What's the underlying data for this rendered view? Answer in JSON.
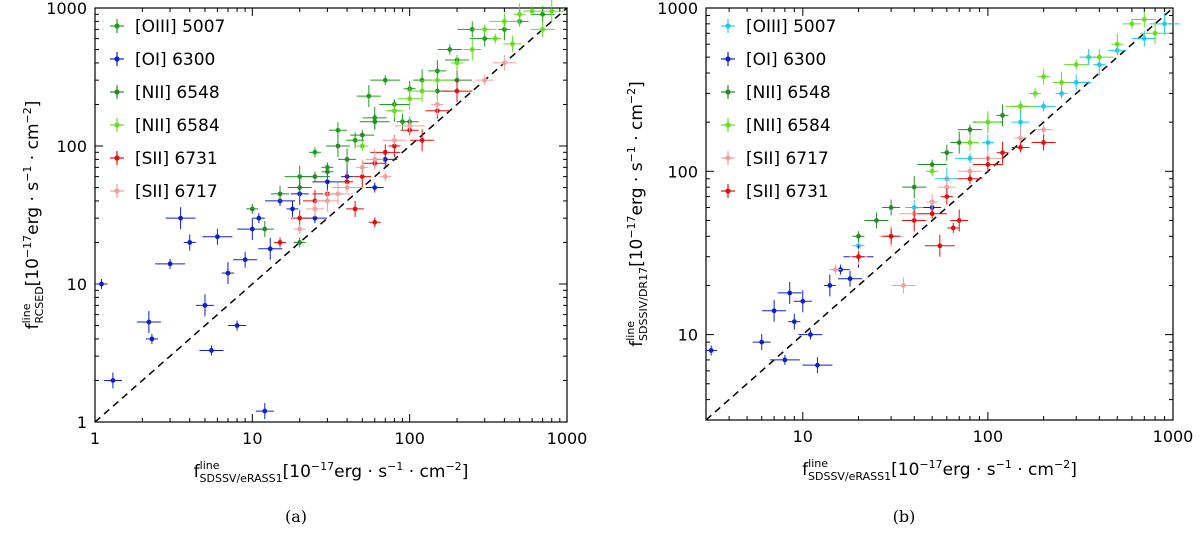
{
  "chart_data": [
    {
      "type": "scatter",
      "panel": "(a)",
      "xscale": "log",
      "yscale": "log",
      "xlim": [
        1,
        1000
      ],
      "ylim": [
        1,
        1000
      ],
      "x_ticks": [
        "1",
        "10",
        "100",
        "1000"
      ],
      "y_ticks": [
        "1",
        "10",
        "100",
        "1000"
      ],
      "xlabel": {
        "main": "f",
        "sup": "line",
        "sub": "SDSSV/eRASS1",
        "units": "[10",
        "units_exp": "−17",
        "units_rest": "erg · s",
        "units_exp2": "−1",
        "units_end": " · cm",
        "units_exp3": "−2",
        "close": "]"
      },
      "ylabel": {
        "main": "f",
        "sup": "line",
        "sub": "RCSED",
        "units": "[10",
        "units_exp": "−17",
        "units_rest": "erg · s",
        "units_exp2": "−1",
        "units_end": " · cm",
        "units_exp3": "−2",
        "close": "]"
      },
      "reference_line": "y = x",
      "legend_position": "top-left",
      "series": [
        {
          "name": "[OIII] 5007",
          "color": "#1f9e1f",
          "points": [
            [
              30,
              70
            ],
            [
              45,
              110
            ],
            [
              60,
              160
            ],
            [
              80,
              200
            ],
            [
              100,
              260
            ],
            [
              150,
              350
            ],
            [
              200,
              420
            ],
            [
              300,
              600
            ],
            [
              400,
              700
            ],
            [
              500,
              800
            ],
            [
              700,
              900
            ],
            [
              20,
              60
            ],
            [
              25,
              90
            ],
            [
              35,
              130
            ],
            [
              55,
              230
            ],
            [
              70,
              300
            ],
            [
              90,
              150
            ],
            [
              120,
              300
            ],
            [
              180,
              500
            ],
            [
              250,
              700
            ]
          ]
        },
        {
          "name": "[OI] 6300",
          "color": "#1020c8",
          "points": [
            [
              1.1,
              10
            ],
            [
              1.3,
              2
            ],
            [
              2.2,
              5.3
            ],
            [
              3,
              14
            ],
            [
              4,
              20
            ],
            [
              5,
              7
            ],
            [
              5.5,
              3.3
            ],
            [
              6,
              22
            ],
            [
              7,
              12
            ],
            [
              8,
              5
            ],
            [
              9,
              15
            ],
            [
              10,
              25
            ],
            [
              11,
              30
            ],
            [
              12,
              1.2
            ],
            [
              13,
              18
            ],
            [
              15,
              40
            ],
            [
              18,
              35
            ],
            [
              20,
              45
            ],
            [
              25,
              30
            ],
            [
              30,
              55
            ],
            [
              40,
              60
            ],
            [
              60,
              50
            ],
            [
              70,
              80
            ],
            [
              3.5,
              30
            ],
            [
              2.3,
              4
            ]
          ]
        },
        {
          "name": "[NII] 6548",
          "color": "#2a8a2a",
          "points": [
            [
              10,
              35
            ],
            [
              15,
              45
            ],
            [
              20,
              50
            ],
            [
              25,
              60
            ],
            [
              30,
              65
            ],
            [
              40,
              80
            ],
            [
              50,
              120
            ],
            [
              60,
              150
            ],
            [
              80,
              180
            ],
            [
              100,
              150
            ],
            [
              150,
              250
            ],
            [
              200,
              300
            ],
            [
              20,
              20
            ],
            [
              12,
              25
            ],
            [
              35,
              100
            ]
          ]
        },
        {
          "name": "[NII] 6584",
          "color": "#66dd22",
          "points": [
            [
              50,
              100
            ],
            [
              80,
              180
            ],
            [
              100,
              220
            ],
            [
              150,
              300
            ],
            [
              200,
              400
            ],
            [
              250,
              500
            ],
            [
              300,
              700
            ],
            [
              400,
              800
            ],
            [
              500,
              900
            ],
            [
              600,
              950
            ],
            [
              700,
              700
            ],
            [
              120,
              250
            ],
            [
              350,
              600
            ],
            [
              450,
              550
            ],
            [
              800,
              950
            ]
          ]
        },
        {
          "name": "[SII] 6731",
          "color": "#e01010",
          "points": [
            [
              15,
              20
            ],
            [
              20,
              30
            ],
            [
              25,
              40
            ],
            [
              30,
              45
            ],
            [
              40,
              55
            ],
            [
              50,
              60
            ],
            [
              60,
              75
            ],
            [
              70,
              90
            ],
            [
              80,
              100
            ],
            [
              100,
              130
            ],
            [
              150,
              180
            ],
            [
              200,
              250
            ],
            [
              60,
              28
            ],
            [
              45,
              35
            ],
            [
              120,
              110
            ]
          ]
        },
        {
          "name": "[SII] 6717",
          "color": "#f0a0a0",
          "points": [
            [
              20,
              25
            ],
            [
              25,
              35
            ],
            [
              30,
              40
            ],
            [
              40,
              50
            ],
            [
              50,
              70
            ],
            [
              60,
              80
            ],
            [
              80,
              110
            ],
            [
              100,
              140
            ],
            [
              150,
              200
            ],
            [
              300,
              300
            ],
            [
              400,
              400
            ],
            [
              35,
              45
            ],
            [
              70,
              60
            ]
          ]
        }
      ]
    },
    {
      "type": "scatter",
      "panel": "(b)",
      "xscale": "log",
      "yscale": "log",
      "xlim": [
        3,
        1000
      ],
      "ylim": [
        3,
        1000
      ],
      "x_ticks": [
        "10",
        "100",
        "1000"
      ],
      "y_ticks": [
        "10",
        "100",
        "1000"
      ],
      "xlabel": {
        "main": "f",
        "sup": "line",
        "sub": "SDSSV/eRASS1",
        "units": "[10",
        "units_exp": "−17",
        "units_rest": "erg · s",
        "units_exp2": "−1",
        "units_end": " · cm",
        "units_exp3": "−2",
        "close": "]"
      },
      "ylabel": {
        "main": "f",
        "sup": "line",
        "sub": "SDSSIV/DR17",
        "units": "[10",
        "units_exp": "−17",
        "units_rest": "erg · s",
        "units_exp2": "−1",
        "units_end": " · cm",
        "units_exp3": "−2",
        "close": "]"
      },
      "reference_line": "y = x",
      "legend_position": "top-left",
      "series": [
        {
          "name": "[OIII] 5007",
          "color": "#22c8e8",
          "points": [
            [
              20,
              35
            ],
            [
              40,
              60
            ],
            [
              60,
              90
            ],
            [
              80,
              120
            ],
            [
              100,
              150
            ],
            [
              150,
              200
            ],
            [
              200,
              250
            ],
            [
              300,
              350
            ],
            [
              400,
              450
            ],
            [
              500,
              550
            ],
            [
              700,
              650
            ],
            [
              900,
              800
            ],
            [
              250,
              300
            ],
            [
              350,
              500
            ]
          ]
        },
        {
          "name": "[OI] 6300",
          "color": "#1020c8",
          "points": [
            [
              3.2,
              8
            ],
            [
              6,
              9
            ],
            [
              7,
              14
            ],
            [
              8,
              7
            ],
            [
              9,
              12
            ],
            [
              10,
              16
            ],
            [
              11,
              10
            ],
            [
              12,
              6.5
            ],
            [
              14,
              20
            ],
            [
              16,
              25
            ],
            [
              18,
              22
            ],
            [
              20,
              30
            ],
            [
              30,
              40
            ],
            [
              50,
              60
            ],
            [
              8.5,
              18
            ]
          ]
        },
        {
          "name": "[NII] 6548",
          "color": "#2a8a2a",
          "points": [
            [
              20,
              40
            ],
            [
              30,
              60
            ],
            [
              40,
              80
            ],
            [
              50,
              110
            ],
            [
              60,
              130
            ],
            [
              70,
              150
            ],
            [
              80,
              180
            ],
            [
              100,
              200
            ],
            [
              120,
              220
            ],
            [
              150,
              250
            ],
            [
              25,
              50
            ]
          ]
        },
        {
          "name": "[NII] 6584",
          "color": "#66dd22",
          "points": [
            [
              50,
              100
            ],
            [
              80,
              150
            ],
            [
              100,
              200
            ],
            [
              150,
              250
            ],
            [
              200,
              380
            ],
            [
              250,
              350
            ],
            [
              300,
              450
            ],
            [
              400,
              500
            ],
            [
              500,
              600
            ],
            [
              600,
              800
            ],
            [
              700,
              850
            ],
            [
              800,
              700
            ],
            [
              180,
              300
            ]
          ]
        },
        {
          "name": "[SII] 6717",
          "color": "#f0a0a0",
          "points": [
            [
              15,
              25
            ],
            [
              20,
              30
            ],
            [
              30,
              40
            ],
            [
              40,
              55
            ],
            [
              50,
              65
            ],
            [
              60,
              80
            ],
            [
              80,
              100
            ],
            [
              100,
              120
            ],
            [
              150,
              160
            ],
            [
              200,
              180
            ],
            [
              35,
              20
            ]
          ]
        },
        {
          "name": "[SII] 6731",
          "color": "#e01010",
          "points": [
            [
              20,
              30
            ],
            [
              30,
              40
            ],
            [
              40,
              50
            ],
            [
              50,
              55
            ],
            [
              60,
              70
            ],
            [
              70,
              50
            ],
            [
              80,
              90
            ],
            [
              100,
              110
            ],
            [
              120,
              130
            ],
            [
              150,
              140
            ],
            [
              200,
              150
            ],
            [
              55,
              35
            ],
            [
              65,
              45
            ]
          ]
        }
      ]
    }
  ],
  "captions": {
    "a": "(a)",
    "b": "(b)"
  }
}
